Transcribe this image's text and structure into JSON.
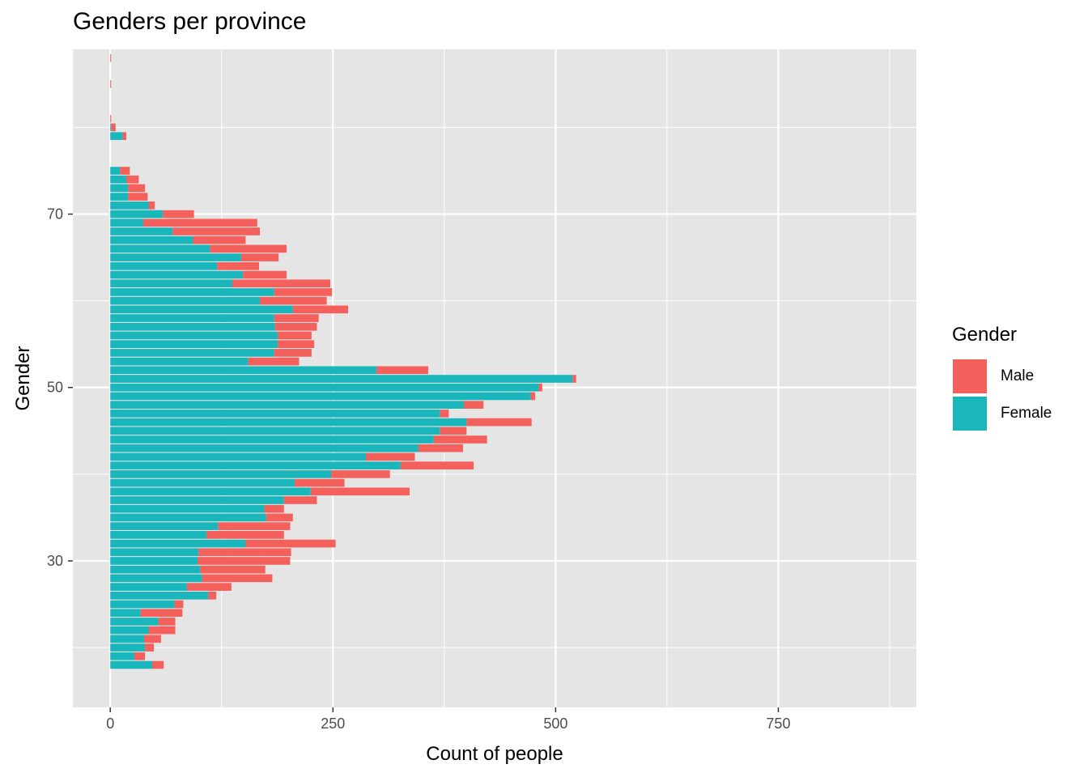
{
  "chart_data": {
    "type": "bar",
    "orientation": "horizontal",
    "stacked": true,
    "title": "Genders per province",
    "xlabel": "Count of people",
    "ylabel": "Gender",
    "x_ticks": [
      0,
      250,
      500,
      750
    ],
    "y_ticks": [
      30,
      50,
      70
    ],
    "xlim": [
      -42,
      905
    ],
    "ylim": [
      13.1,
      89.0
    ],
    "grid": true,
    "legend_title": "Gender",
    "legend_position": "right",
    "y": [
      18,
      19,
      20,
      21,
      22,
      23,
      24,
      25,
      26,
      27,
      28,
      29,
      30,
      31,
      32,
      33,
      34,
      35,
      36,
      37,
      38,
      39,
      40,
      41,
      42,
      43,
      44,
      45,
      46,
      47,
      48,
      49,
      50,
      51,
      52,
      53,
      54,
      55,
      56,
      57,
      58,
      59,
      60,
      61,
      62,
      63,
      64,
      65,
      66,
      67,
      68,
      69,
      70,
      71,
      72,
      73,
      74,
      75,
      79,
      80,
      81,
      85,
      88
    ],
    "series": [
      {
        "name": "Female",
        "color": "#19b6bc",
        "values": [
          47,
          27,
          39,
          38,
          43,
          54,
          34,
          72,
          110,
          86,
          103,
          101,
          98,
          99,
          152,
          108,
          121,
          175,
          173,
          195,
          225,
          207,
          248,
          326,
          287,
          346,
          363,
          370,
          400,
          370,
          397,
          472,
          481,
          519,
          299,
          155,
          184,
          188,
          188,
          185,
          184,
          205,
          168,
          184,
          137,
          149,
          120,
          147,
          112,
          93,
          70,
          37,
          59,
          43,
          20,
          20,
          18,
          11,
          14,
          1,
          0,
          0,
          0
        ]
      },
      {
        "name": "Male",
        "color": "#f4605c",
        "values": [
          13,
          12,
          10,
          19,
          30,
          19,
          47,
          10,
          9,
          50,
          79,
          73,
          104,
          104,
          101,
          87,
          81,
          30,
          22,
          37,
          111,
          56,
          66,
          82,
          55,
          50,
          60,
          30,
          73,
          10,
          22,
          5,
          4,
          4,
          58,
          57,
          42,
          41,
          38,
          47,
          50,
          62,
          75,
          65,
          110,
          49,
          47,
          42,
          86,
          59,
          98,
          128,
          35,
          7,
          22,
          19,
          14,
          11,
          4,
          5,
          1,
          1,
          1
        ]
      }
    ]
  }
}
